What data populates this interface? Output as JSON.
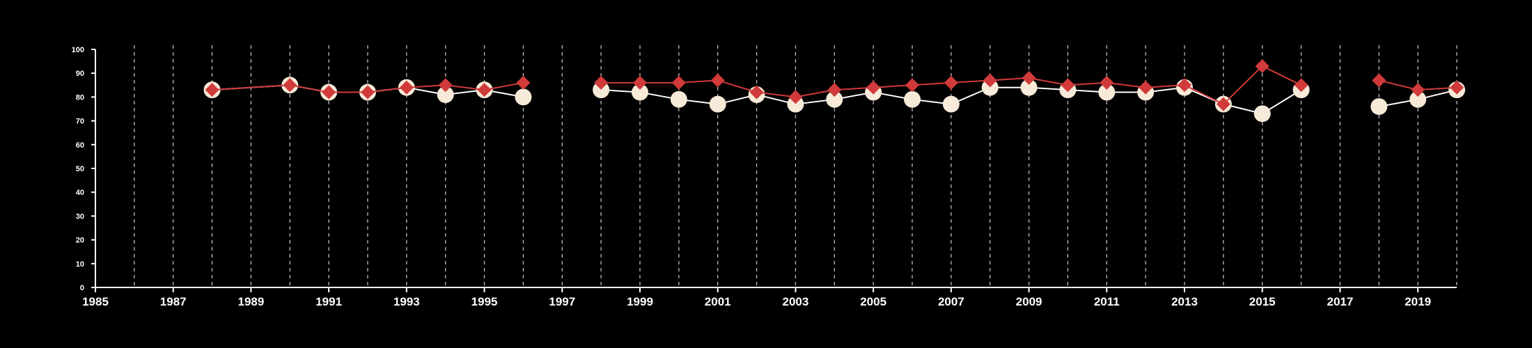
{
  "chart_data": {
    "type": "line",
    "title": "",
    "xlabel": "",
    "ylabel": "",
    "xlim": [
      1985,
      2020
    ],
    "ylim": [
      0,
      100
    ],
    "x_ticks": [
      1985,
      1987,
      1989,
      1991,
      1993,
      1995,
      1997,
      1999,
      2001,
      2003,
      2005,
      2007,
      2009,
      2011,
      2013,
      2015,
      2017,
      2019
    ],
    "y_ticks": [
      0,
      10,
      20,
      30,
      40,
      50,
      60,
      70,
      80,
      90,
      100
    ],
    "vertical_gridlines": [
      1986,
      1987,
      1988,
      1989,
      1990,
      1991,
      1992,
      1993,
      1994,
      1995,
      1996,
      1997,
      1998,
      1999,
      2000,
      2001,
      2002,
      2003,
      2004,
      2005,
      2006,
      2007,
      2008,
      2009,
      2010,
      2011,
      2012,
      2013,
      2014,
      2015,
      2016,
      2017,
      2018,
      2019,
      2020
    ],
    "grid": "vertical dashed",
    "legend": "none",
    "series": [
      {
        "marker": "circle",
        "color": "#f7ead8",
        "line_color": "#ffffff",
        "points": [
          [
            1988,
            83
          ],
          [
            1990,
            85
          ],
          [
            1991,
            82
          ],
          [
            1992,
            82
          ],
          [
            1993,
            84
          ],
          [
            1994,
            81
          ],
          [
            1995,
            83
          ],
          [
            1996,
            80
          ],
          null,
          [
            1998,
            83
          ],
          [
            1999,
            82
          ],
          [
            2000,
            79
          ],
          [
            2001,
            77
          ],
          [
            2002,
            81
          ],
          [
            2003,
            77
          ],
          [
            2004,
            79
          ],
          [
            2005,
            82
          ],
          [
            2006,
            79
          ],
          [
            2007,
            77
          ],
          [
            2008,
            84
          ],
          [
            2009,
            84
          ],
          [
            2010,
            83
          ],
          [
            2011,
            82
          ],
          [
            2012,
            82
          ],
          [
            2013,
            84
          ],
          [
            2014,
            77
          ],
          [
            2015,
            73
          ],
          [
            2016,
            83
          ],
          null,
          [
            2018,
            76
          ],
          [
            2019,
            79
          ],
          [
            2020,
            83
          ]
        ]
      },
      {
        "marker": "diamond",
        "color": "#d13a3a",
        "line_color": "#d13a3a",
        "points": [
          [
            1988,
            83
          ],
          [
            1990,
            85
          ],
          [
            1991,
            82
          ],
          [
            1992,
            82
          ],
          [
            1993,
            84
          ],
          [
            1994,
            85
          ],
          [
            1995,
            83
          ],
          [
            1996,
            86
          ],
          null,
          [
            1998,
            86
          ],
          [
            1999,
            86
          ],
          [
            2000,
            86
          ],
          [
            2001,
            87
          ],
          [
            2002,
            82
          ],
          [
            2003,
            80
          ],
          [
            2004,
            83
          ],
          [
            2005,
            84
          ],
          [
            2006,
            85
          ],
          [
            2007,
            86
          ],
          [
            2008,
            87
          ],
          [
            2009,
            88
          ],
          [
            2010,
            85
          ],
          [
            2011,
            86
          ],
          [
            2012,
            84
          ],
          [
            2013,
            85
          ],
          [
            2014,
            77
          ],
          [
            2015,
            93
          ],
          [
            2016,
            85
          ],
          null,
          [
            2018,
            87
          ],
          [
            2019,
            83
          ],
          [
            2020,
            84
          ]
        ]
      }
    ]
  }
}
